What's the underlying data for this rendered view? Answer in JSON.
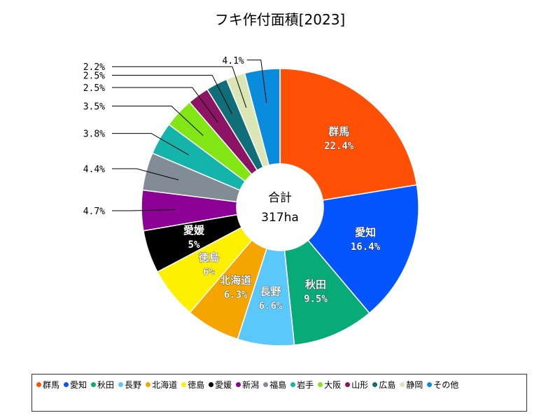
{
  "chart_data": {
    "type": "pie",
    "title": "フキ作付面積[2023]",
    "center_label": "合計",
    "center_value": "317ha",
    "slices": [
      {
        "name": "群馬",
        "value": 22.4,
        "label": "22.4%",
        "color": "#ff5005"
      },
      {
        "name": "愛知",
        "value": 16.4,
        "label": "16.4%",
        "color": "#0555ff"
      },
      {
        "name": "秋田",
        "value": 9.5,
        "label": "9.5%",
        "color": "#08aa78"
      },
      {
        "name": "長野",
        "value": 6.6,
        "label": "6.6%",
        "color": "#5ac8fa"
      },
      {
        "name": "北海道",
        "value": 6.3,
        "label": "6.3%",
        "color": "#f5a500"
      },
      {
        "name": "徳島",
        "value": 6.0,
        "label": "6%",
        "color": "#fff000"
      },
      {
        "name": "愛媛",
        "value": 5.0,
        "label": "5%",
        "color": "#000000"
      },
      {
        "name": "新潟",
        "value": 4.7,
        "label": "4.7%",
        "color": "#8c0096"
      },
      {
        "name": "福島",
        "value": 4.4,
        "label": "4.4%",
        "color": "#828c96"
      },
      {
        "name": "岩手",
        "value": 3.8,
        "label": "3.8%",
        "color": "#14b4aa"
      },
      {
        "name": "大阪",
        "value": 3.5,
        "label": "3.5%",
        "color": "#82e614"
      },
      {
        "name": "山形",
        "value": 2.5,
        "label": "2.5%",
        "color": "#8c1464"
      },
      {
        "name": "広島",
        "value": 2.5,
        "label": "2.5%",
        "color": "#0f6e78"
      },
      {
        "name": "静岡",
        "value": 2.2,
        "label": "2.2%",
        "color": "#dce6b4"
      },
      {
        "name": "その他",
        "value": 4.1,
        "label": "4.1%",
        "color": "#0a8cdc"
      }
    ],
    "legend_position": "bottom"
  }
}
